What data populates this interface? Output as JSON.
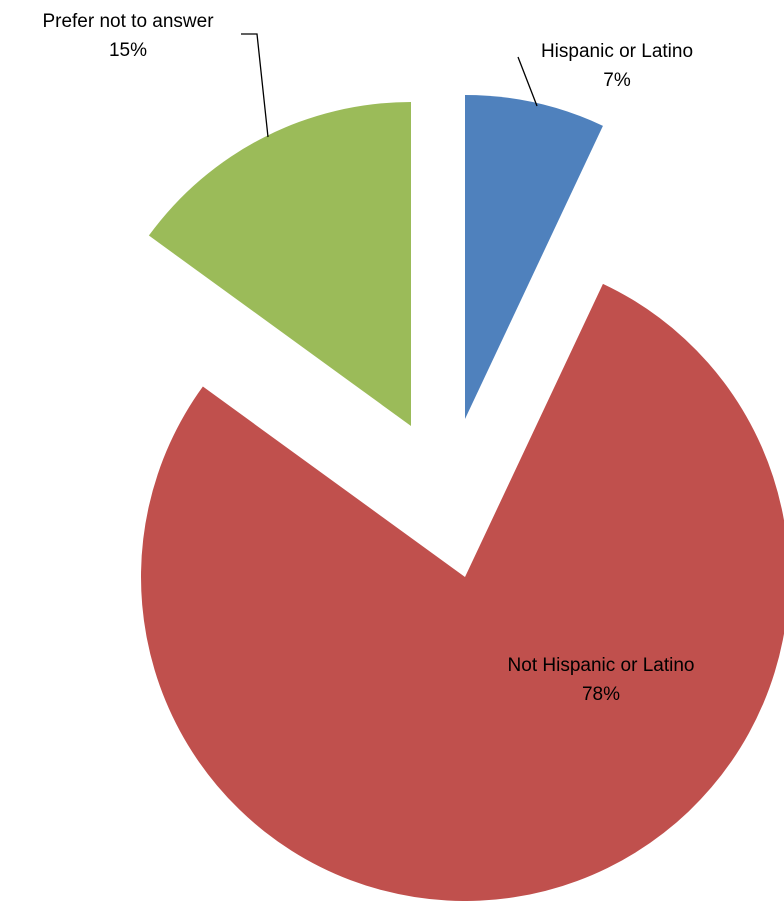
{
  "chart_data": {
    "type": "pie",
    "exploded": true,
    "start_angle_deg": 0,
    "direction": "clockwise",
    "slices": [
      {
        "label": "Hispanic or Latino",
        "value": 7,
        "percent_label": "7%",
        "color": "#4F81BD"
      },
      {
        "label": "Not Hispanic or Latino",
        "value": 78,
        "percent_label": "78%",
        "color": "#C0504D"
      },
      {
        "label": "Prefer not to answer",
        "value": 15,
        "percent_label": "15%",
        "color": "#9BBB59"
      }
    ]
  }
}
